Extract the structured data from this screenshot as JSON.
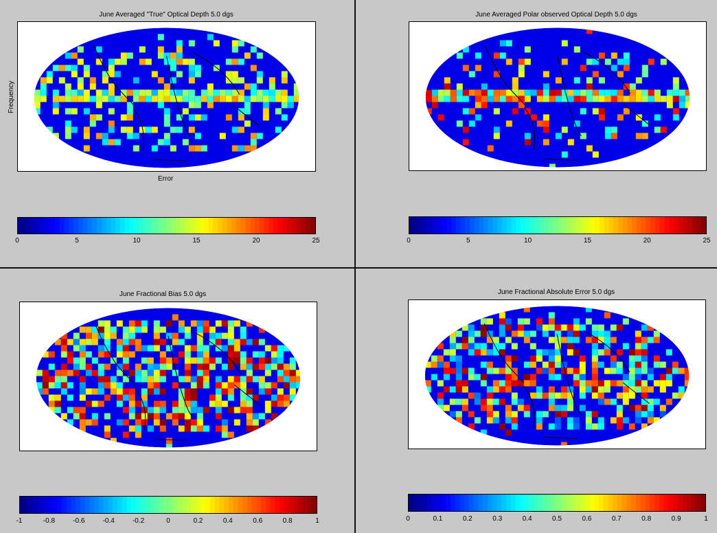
{
  "chart_data": [
    {
      "type": "heatmap",
      "title": "June Averaged \"True\" Optical Depth 5.0 dgs",
      "xlabel": "Error",
      "ylabel": "Frequency",
      "projection": "mollweide",
      "colormap": "jet",
      "colorbar": {
        "range": [
          0,
          25
        ],
        "ticks": [
          "0",
          "5",
          "10",
          "15",
          "20",
          "25"
        ]
      }
    },
    {
      "type": "heatmap",
      "title": "June Averaged Polar observed Optical Depth  5.0 dgs",
      "xlabel": "",
      "ylabel": "",
      "projection": "mollweide",
      "colormap": "jet",
      "colorbar": {
        "range": [
          0,
          25
        ],
        "ticks": [
          "0",
          "5",
          "10",
          "15",
          "20",
          "25"
        ]
      }
    },
    {
      "type": "heatmap",
      "title": "June Fractional Bias 5.0 dgs",
      "xlabel": "",
      "ylabel": "",
      "projection": "mollweide",
      "colormap": "jet",
      "colorbar": {
        "range": [
          -1,
          1
        ],
        "ticks": [
          "-1",
          "-0.8",
          "-0.6",
          "-0.4",
          "-0.2",
          "0",
          "0.2",
          "0.4",
          "0.6",
          "0.8",
          "1"
        ]
      }
    },
    {
      "type": "heatmap",
      "title": "June Fractional Absolute Error 5.0 dgs",
      "xlabel": "",
      "ylabel": "",
      "projection": "mollweide",
      "colormap": "jet",
      "colorbar": {
        "range": [
          0,
          1
        ],
        "ticks": [
          "0",
          "0.1",
          "0.2",
          "0.3",
          "0.4",
          "0.5",
          "0.6",
          "0.7",
          "0.8",
          "0.9",
          "1"
        ]
      }
    }
  ],
  "colors": {
    "background": "#c8c8c8",
    "plot_bg": "#ffffff",
    "base": "#0a1aa0"
  }
}
